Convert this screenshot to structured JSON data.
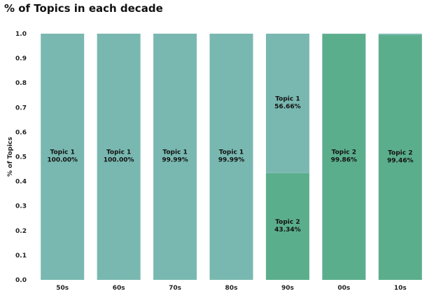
{
  "chart_data": {
    "type": "bar",
    "stacked": true,
    "title": "% of Topics in each decade",
    "xlabel": "",
    "ylabel": "% of Topics",
    "categories": [
      "50s",
      "60s",
      "70s",
      "80s",
      "90s",
      "00s",
      "10s"
    ],
    "series": [
      {
        "name": "Topic 2",
        "color": "#5bae8c",
        "values": [
          0.0,
          0.0,
          0.0001,
          0.0001,
          0.4334,
          0.9986,
          0.9946
        ],
        "labels": [
          "",
          "",
          "",
          "",
          "43.34%",
          "99.86%",
          "99.46%"
        ]
      },
      {
        "name": "Topic 1",
        "color": "#79b8b0",
        "values": [
          1.0,
          1.0,
          0.9999,
          0.9999,
          0.5666,
          0.0014,
          0.0054
        ],
        "labels": [
          "100.00%",
          "100.00%",
          "99.99%",
          "99.99%",
          "56.66%",
          "",
          ""
        ]
      }
    ],
    "ylim": [
      0.0,
      1.0
    ],
    "yticks": [
      "0.0",
      "0.1",
      "0.2",
      "0.3",
      "0.4",
      "0.5",
      "0.6",
      "0.7",
      "0.8",
      "0.9",
      "1.0"
    ],
    "grid": false,
    "legend": "none"
  }
}
